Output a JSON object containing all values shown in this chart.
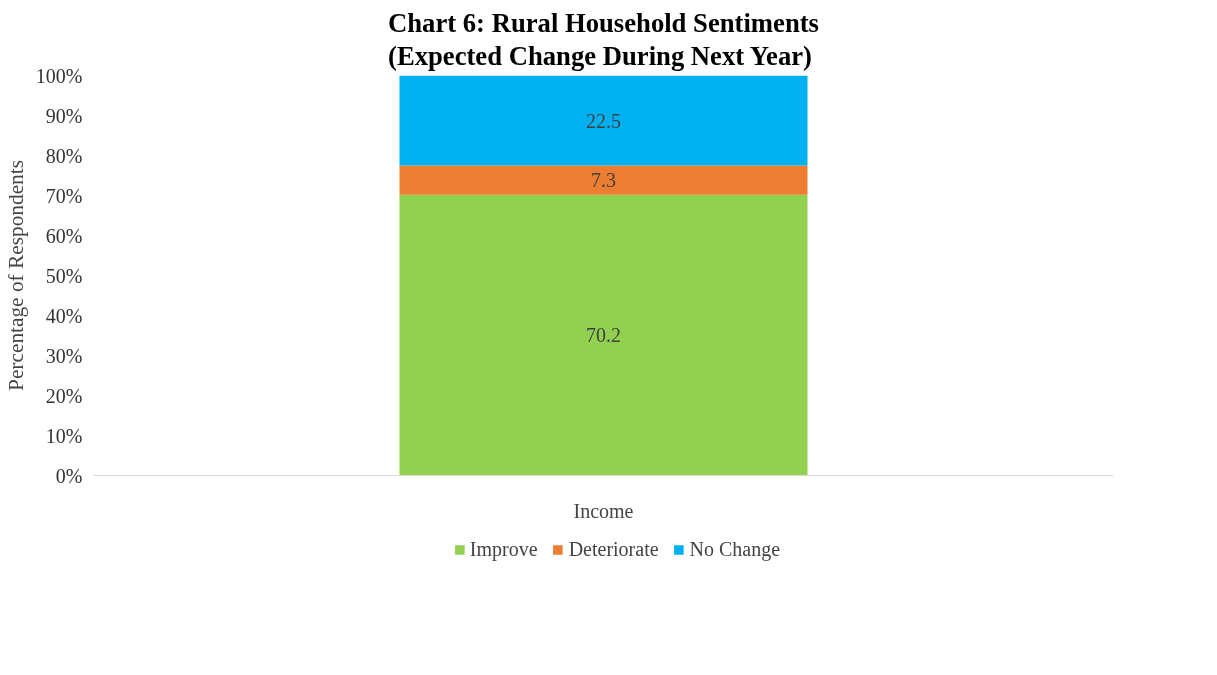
{
  "chart_data": {
    "type": "bar",
    "title": "Chart 6: Rural Household Sentiments\n(Expected Change During Next Year)",
    "ylabel": "Percentage of Respondents",
    "categories": [
      "Income"
    ],
    "stacked": true,
    "series": [
      {
        "name": "Improve",
        "color": "#92d050",
        "values": [
          70.2
        ]
      },
      {
        "name": "Deteriorate",
        "color": "#ed7d31",
        "values": [
          7.3
        ]
      },
      {
        "name": "No Change",
        "color": "#00b0f0",
        "values": [
          22.5
        ]
      }
    ],
    "ylim": [
      0,
      100
    ],
    "yticks": [
      {
        "value": 0,
        "label": "0%"
      },
      {
        "value": 10,
        "label": "10%"
      },
      {
        "value": 20,
        "label": "20%"
      },
      {
        "value": 30,
        "label": "30%"
      },
      {
        "value": 40,
        "label": "40%"
      },
      {
        "value": 50,
        "label": "50%"
      },
      {
        "value": 60,
        "label": "60%"
      },
      {
        "value": 70,
        "label": "70%"
      },
      {
        "value": 80,
        "label": "80%"
      },
      {
        "value": 90,
        "label": "90%"
      },
      {
        "value": 100,
        "label": "100%"
      }
    ],
    "data_labels": true,
    "grid": false,
    "legend": "bottom"
  }
}
